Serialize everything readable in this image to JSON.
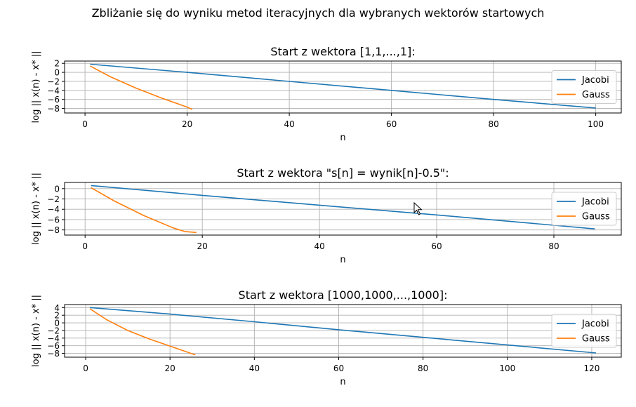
{
  "figure": {
    "suptitle": "Zbliżanie się do wyniku metod iteracyjnych dla wybranych wektorów startowych"
  },
  "colors": {
    "jacobi": "#1f77b4",
    "gauss": "#ff7f0e",
    "grid": "#b0b0b0"
  },
  "chart_data": [
    {
      "type": "line",
      "title": "Start z wektora [1,1,...,1]:",
      "xlabel": "n",
      "ylabel": "log || x(n) - x* ||",
      "xlim": [
        -4,
        105
      ],
      "ylim": [
        -9,
        2.5
      ],
      "xticks": [
        0,
        20,
        40,
        60,
        80,
        100
      ],
      "yticks": [
        2,
        0,
        -2,
        -4,
        -6,
        -8
      ],
      "grid": true,
      "legend": "right",
      "series": [
        {
          "name": "Jacobi",
          "color": "#1f77b4",
          "x": [
            1,
            20,
            40,
            60,
            80,
            100
          ],
          "y": [
            1.8,
            0.0,
            -2.0,
            -4.0,
            -6.0,
            -7.9
          ]
        },
        {
          "name": "Gauss",
          "color": "#ff7f0e",
          "x": [
            1,
            5,
            10,
            15,
            20,
            21
          ],
          "y": [
            1.4,
            -1.0,
            -3.5,
            -5.7,
            -7.7,
            -8.2
          ]
        }
      ]
    },
    {
      "type": "line",
      "title": "Start z wektora \"s[n] = wynik[n]-0.5\":",
      "xlabel": "n",
      "ylabel": "log || x(n) - x* ||",
      "xlim": [
        -3.5,
        91.5
      ],
      "ylim": [
        -9,
        1.2
      ],
      "xticks": [
        0,
        20,
        40,
        60,
        80
      ],
      "yticks": [
        0,
        -2,
        -4,
        -6,
        -8
      ],
      "grid": true,
      "legend": "right",
      "series": [
        {
          "name": "Jacobi",
          "color": "#1f77b4",
          "x": [
            1,
            20,
            40,
            60,
            80,
            87
          ],
          "y": [
            0.6,
            -1.3,
            -3.2,
            -5.1,
            -7.1,
            -7.8
          ]
        },
        {
          "name": "Gauss",
          "color": "#ff7f0e",
          "x": [
            1,
            5,
            10,
            15,
            17,
            19
          ],
          "y": [
            0.2,
            -2.4,
            -5.2,
            -7.6,
            -8.3,
            -8.5
          ]
        }
      ]
    },
    {
      "type": "line",
      "title": "Start z wektora [1000,1000,...,1000]:",
      "xlabel": "n",
      "ylabel": "log || x(n) - x* ||",
      "xlim": [
        -5,
        127
      ],
      "ylim": [
        -9,
        4.8
      ],
      "xticks": [
        0,
        20,
        40,
        60,
        80,
        100,
        120
      ],
      "yticks": [
        4,
        2,
        0,
        -2,
        -4,
        -6,
        -8
      ],
      "grid": true,
      "legend": "right",
      "series": [
        {
          "name": "Jacobi",
          "color": "#1f77b4",
          "x": [
            1,
            20,
            40,
            60,
            80,
            100,
            121
          ],
          "y": [
            4.0,
            2.3,
            0.3,
            -1.8,
            -3.8,
            -5.8,
            -7.9
          ]
        },
        {
          "name": "Gauss",
          "color": "#ff7f0e",
          "x": [
            1,
            5,
            10,
            15,
            20,
            25,
            26
          ],
          "y": [
            3.7,
            0.8,
            -2.0,
            -4.2,
            -6.1,
            -8.0,
            -8.4
          ]
        }
      ]
    }
  ]
}
